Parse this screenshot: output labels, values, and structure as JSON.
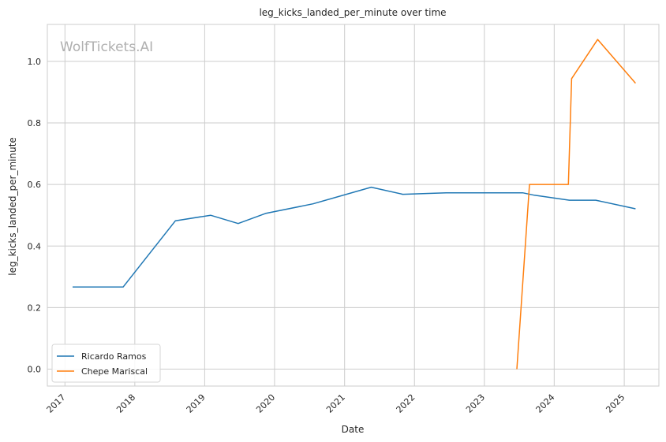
{
  "chart_data": {
    "type": "line",
    "title": "leg_kicks_landed_per_minute over time",
    "xlabel": "Date",
    "ylabel": "leg_kicks_landed_per_minute",
    "watermark": "WolfTickets.AI",
    "xlim": [
      "2016-10-01",
      "2025-07-01"
    ],
    "ylim": [
      -0.055,
      1.12
    ],
    "x_ticks": [
      "2017",
      "2018",
      "2019",
      "2020",
      "2021",
      "2022",
      "2023",
      "2024",
      "2025"
    ],
    "y_ticks": [
      "0.0",
      "0.2",
      "0.4",
      "0.6",
      "0.8",
      "1.0"
    ],
    "grid": true,
    "legend_position": "lower-left",
    "series": [
      {
        "name": "Ricardo Ramos",
        "color": "#1f77b4",
        "points": [
          {
            "x": "2017-02-10",
            "y": 0.267
          },
          {
            "x": "2017-11-01",
            "y": 0.267
          },
          {
            "x": "2018-08-01",
            "y": 0.482
          },
          {
            "x": "2019-02-01",
            "y": 0.5
          },
          {
            "x": "2019-06-25",
            "y": 0.473
          },
          {
            "x": "2019-11-15",
            "y": 0.506
          },
          {
            "x": "2020-07-20",
            "y": 0.537
          },
          {
            "x": "2021-05-20",
            "y": 0.591
          },
          {
            "x": "2021-11-01",
            "y": 0.568
          },
          {
            "x": "2022-06-15",
            "y": 0.573
          },
          {
            "x": "2023-07-20",
            "y": 0.573
          },
          {
            "x": "2023-09-20",
            "y": 0.565
          },
          {
            "x": "2024-03-20",
            "y": 0.549
          },
          {
            "x": "2024-08-05",
            "y": 0.549
          },
          {
            "x": "2025-03-01",
            "y": 0.521
          }
        ]
      },
      {
        "name": "Chepe Mariscal",
        "color": "#ff7f0e",
        "points": [
          {
            "x": "2023-06-20",
            "y": 0.0
          },
          {
            "x": "2023-08-25",
            "y": 0.6
          },
          {
            "x": "2024-03-15",
            "y": 0.6
          },
          {
            "x": "2024-04-01",
            "y": 0.944
          },
          {
            "x": "2024-08-15",
            "y": 1.071
          },
          {
            "x": "2025-03-01",
            "y": 0.929
          }
        ]
      }
    ]
  }
}
